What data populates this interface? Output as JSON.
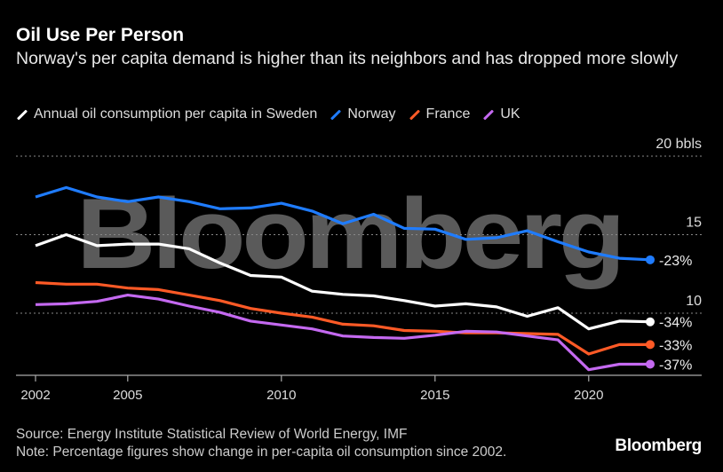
{
  "title": "Oil Use Per Person",
  "subtitle": "Norway's per capita demand is higher than its neighbors and has dropped more slowly",
  "source": "Source: Energy Institute Statistical Review of World Energy, IMF",
  "note": "Note: Percentage figures show change in per-capita oil consumption since 2002.",
  "logo": "Bloomberg",
  "watermark": "Bloomberg",
  "chart_data": {
    "type": "line",
    "title": "Oil Use Per Person",
    "ylabel_unit": "bbls",
    "x": [
      2002,
      2003,
      2004,
      2005,
      2006,
      2007,
      2008,
      2009,
      2010,
      2011,
      2012,
      2013,
      2014,
      2015,
      2016,
      2017,
      2018,
      2019,
      2020,
      2021,
      2022
    ],
    "xticks": [
      2002,
      2005,
      2010,
      2015,
      2020
    ],
    "xtick_labels": [
      "2002",
      "2005",
      "2010",
      "2015",
      "2020"
    ],
    "yticks": [
      10,
      15,
      20
    ],
    "ytick_labels": [
      "10",
      "15",
      "20 bbls"
    ],
    "ylim": [
      6,
      20
    ],
    "grid": "horizontal-dotted",
    "legend_position": "top",
    "series": [
      {
        "name": "Annual oil consumption per capita in Sweden",
        "color": "#ffffff",
        "end_label": "-34%",
        "values": [
          14.3,
          15.0,
          14.3,
          14.4,
          14.4,
          14.1,
          13.2,
          12.4,
          12.3,
          11.4,
          11.2,
          11.1,
          10.8,
          10.45,
          10.6,
          10.4,
          9.8,
          10.35,
          9.0,
          9.5,
          9.45
        ]
      },
      {
        "name": "Norway",
        "color": "#1f7cff",
        "end_label": "-23%",
        "values": [
          17.4,
          18.0,
          17.4,
          17.1,
          17.4,
          17.1,
          16.65,
          16.7,
          17.0,
          16.5,
          15.7,
          16.3,
          15.4,
          15.35,
          14.7,
          14.8,
          15.25,
          14.55,
          13.9,
          13.5,
          13.4
        ]
      },
      {
        "name": "France",
        "color": "#ff5a26",
        "end_label": "-33%",
        "values": [
          11.95,
          11.85,
          11.85,
          11.6,
          11.5,
          11.15,
          10.8,
          10.3,
          10.0,
          9.75,
          9.3,
          9.2,
          8.9,
          8.85,
          8.75,
          8.75,
          8.7,
          8.65,
          7.4,
          8.0,
          8.0
        ]
      },
      {
        "name": "UK",
        "color": "#c469f0",
        "end_label": "-37%",
        "values": [
          10.55,
          10.6,
          10.75,
          11.15,
          10.9,
          10.45,
          10.05,
          9.5,
          9.25,
          9.0,
          8.55,
          8.45,
          8.4,
          8.6,
          8.85,
          8.8,
          8.55,
          8.3,
          6.4,
          6.75,
          6.75
        ]
      }
    ]
  }
}
